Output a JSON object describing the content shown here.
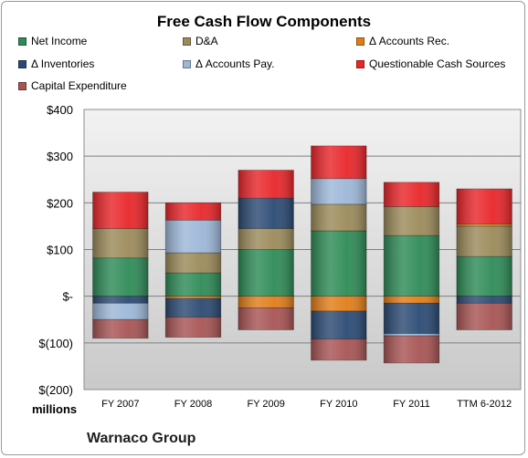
{
  "chart_data": {
    "type": "bar",
    "stacked": true,
    "title": "Free Cash Flow Components",
    "xlabel": "",
    "ylabel": "",
    "units_label": "millions",
    "company": "Warnaco Group",
    "categories": [
      "FY 2007",
      "FY 2008",
      "FY 2009",
      "FY 2010",
      "FY 2011",
      "TTM 6-2012"
    ],
    "ylim": [
      -200,
      400
    ],
    "yticks": [
      {
        "value": 400,
        "label": "$400"
      },
      {
        "value": 300,
        "label": "$300"
      },
      {
        "value": 200,
        "label": "$200"
      },
      {
        "value": 100,
        "label": "$100"
      },
      {
        "value": 0,
        "label": "$-"
      },
      {
        "value": -100,
        "label": "$(100)"
      },
      {
        "value": -200,
        "label": "$(200)"
      }
    ],
    "grid": true,
    "legend_position": "top",
    "series": [
      {
        "name": "Net Income",
        "color": "#2e8b57",
        "values": [
          82,
          50,
          100,
          140,
          130,
          85
        ]
      },
      {
        "name": "D&A",
        "color": "#9b8a5a",
        "values": [
          63,
          43,
          45,
          57,
          62,
          65
        ]
      },
      {
        "name": "Δ Accounts Rec.",
        "color": "#e07d1a",
        "values": [
          0,
          -5,
          -25,
          -32,
          -15,
          5
        ]
      },
      {
        "name": "Δ Inventories",
        "color": "#2b4a73",
        "values": [
          -15,
          -40,
          65,
          -60,
          -65,
          -15
        ]
      },
      {
        "name": "Δ Accounts Pay.",
        "color": "#9db7d8",
        "values": [
          -35,
          70,
          0,
          55,
          -5,
          0
        ]
      },
      {
        "name": "Questionable Cash Sources",
        "color": "#e8262a",
        "values": [
          78,
          37,
          60,
          70,
          52,
          75
        ]
      },
      {
        "name": "Capital Expenditure",
        "color": "#a85454",
        "values": [
          -40,
          -43,
          -47,
          -45,
          -58,
          -57
        ]
      }
    ]
  }
}
